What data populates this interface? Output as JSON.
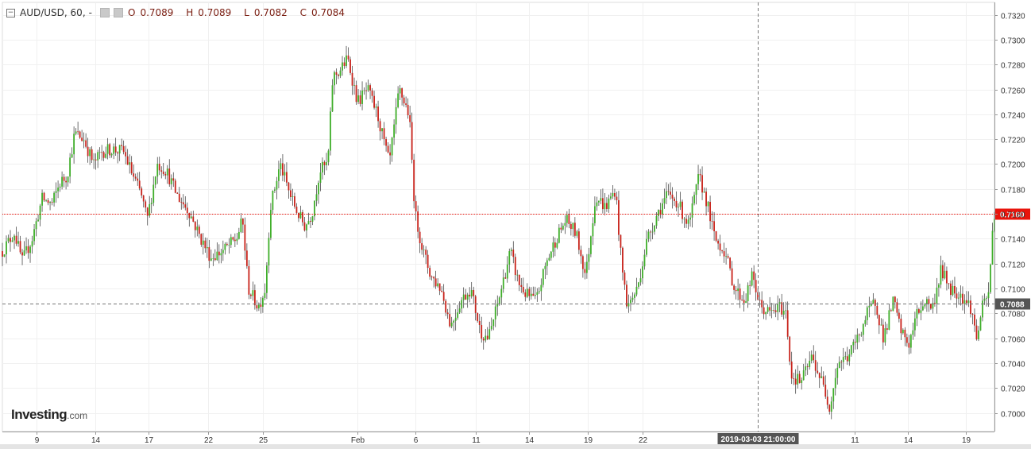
{
  "header": {
    "symbol": "AUD/USD, 60,",
    "dash": "-",
    "o_label": "O",
    "o": "0.7089",
    "h_label": "H",
    "h": "0.7089",
    "l_label": "L",
    "l": "0.7082",
    "c_label": "C",
    "c": "0.7084"
  },
  "logo": {
    "brand": "Investing",
    "suffix": ".com"
  },
  "crosshair_label": "2019-03-03 21:00:00",
  "colors": {
    "up": "#3fae2a",
    "down": "#c8231b",
    "wick": "#333333",
    "last_price": "#e8140c",
    "crosshair": "#777777",
    "grid": "#f0f0f0"
  },
  "chart_data": {
    "type": "candlestick",
    "ylim": [
      0.6985,
      0.733
    ],
    "ytick_values": [
      0.7,
      0.702,
      0.704,
      0.706,
      0.708,
      0.71,
      0.712,
      0.714,
      0.716,
      0.718,
      0.72,
      0.722,
      0.724,
      0.726,
      0.728,
      0.73,
      0.732
    ],
    "ytick_labels": [
      "0.7000",
      "0.7020",
      "0.7040",
      "0.7060",
      "0.7080",
      "0.7100",
      "0.7120",
      "0.7140",
      "0.7160",
      "0.7180",
      "0.7200",
      "0.7220",
      "0.7240",
      "0.7260",
      "0.7280",
      "0.7300",
      "0.7320"
    ],
    "x_ticks": [
      {
        "label": "9",
        "pos": 0.0342
      },
      {
        "label": "14",
        "pos": 0.0939
      },
      {
        "label": "17",
        "pos": 0.1475
      },
      {
        "label": "22",
        "pos": 0.2072
      },
      {
        "label": "25",
        "pos": 0.2629
      },
      {
        "label": "Feb",
        "pos": 0.3575
      },
      {
        "label": "6",
        "pos": 0.4164
      },
      {
        "label": "11",
        "pos": 0.4769
      },
      {
        "label": "14",
        "pos": 0.531
      },
      {
        "label": "19",
        "pos": 0.59
      },
      {
        "label": "22",
        "pos": 0.6457
      },
      {
        "label": "11",
        "pos": 0.8592
      },
      {
        "label": "14",
        "pos": 0.9125
      },
      {
        "label": "19",
        "pos": 0.9714
      }
    ],
    "crosshair_x_pos": 0.7613,
    "crosshair_price": 0.7088,
    "crosshair_price_label": "0.7088",
    "last_price": 0.716,
    "last_price_label": "0.7160",
    "path": [
      [
        0.0,
        0.713
      ],
      [
        0.012,
        0.7145
      ],
      [
        0.02,
        0.7122
      ],
      [
        0.03,
        0.714
      ],
      [
        0.04,
        0.7172
      ],
      [
        0.05,
        0.7168
      ],
      [
        0.058,
        0.7185
      ],
      [
        0.065,
        0.719
      ],
      [
        0.073,
        0.7225
      ],
      [
        0.082,
        0.722
      ],
      [
        0.092,
        0.72
      ],
      [
        0.1,
        0.721
      ],
      [
        0.11,
        0.7212
      ],
      [
        0.122,
        0.721
      ],
      [
        0.132,
        0.719
      ],
      [
        0.14,
        0.7175
      ],
      [
        0.146,
        0.7155
      ],
      [
        0.156,
        0.72
      ],
      [
        0.165,
        0.7195
      ],
      [
        0.176,
        0.7175
      ],
      [
        0.188,
        0.7162
      ],
      [
        0.2,
        0.714
      ],
      [
        0.21,
        0.7125
      ],
      [
        0.222,
        0.713
      ],
      [
        0.236,
        0.714
      ],
      [
        0.242,
        0.7155
      ],
      [
        0.248,
        0.71
      ],
      [
        0.258,
        0.7085
      ],
      [
        0.265,
        0.71
      ],
      [
        0.27,
        0.7165
      ],
      [
        0.28,
        0.72
      ],
      [
        0.29,
        0.7175
      ],
      [
        0.298,
        0.716
      ],
      [
        0.305,
        0.715
      ],
      [
        0.312,
        0.716
      ],
      [
        0.32,
        0.7195
      ],
      [
        0.328,
        0.72
      ],
      [
        0.333,
        0.727
      ],
      [
        0.34,
        0.7275
      ],
      [
        0.348,
        0.7285
      ],
      [
        0.358,
        0.725
      ],
      [
        0.368,
        0.726
      ],
      [
        0.378,
        0.724
      ],
      [
        0.39,
        0.72
      ],
      [
        0.4,
        0.726
      ],
      [
        0.41,
        0.724
      ],
      [
        0.416,
        0.716
      ],
      [
        0.424,
        0.713
      ],
      [
        0.432,
        0.711
      ],
      [
        0.442,
        0.71
      ],
      [
        0.452,
        0.707
      ],
      [
        0.462,
        0.709
      ],
      [
        0.472,
        0.71
      ],
      [
        0.482,
        0.7065
      ],
      [
        0.49,
        0.706
      ],
      [
        0.5,
        0.709
      ],
      [
        0.512,
        0.713
      ],
      [
        0.52,
        0.7105
      ],
      [
        0.528,
        0.7095
      ],
      [
        0.538,
        0.709
      ],
      [
        0.548,
        0.712
      ],
      [
        0.558,
        0.714
      ],
      [
        0.568,
        0.7155
      ],
      [
        0.578,
        0.7145
      ],
      [
        0.588,
        0.711
      ],
      [
        0.598,
        0.7175
      ],
      [
        0.608,
        0.7165
      ],
      [
        0.618,
        0.718
      ],
      [
        0.624,
        0.712
      ],
      [
        0.63,
        0.7085
      ],
      [
        0.64,
        0.71
      ],
      [
        0.65,
        0.714
      ],
      [
        0.66,
        0.716
      ],
      [
        0.67,
        0.7175
      ],
      [
        0.68,
        0.717
      ],
      [
        0.692,
        0.715
      ],
      [
        0.702,
        0.719
      ],
      [
        0.71,
        0.717
      ],
      [
        0.718,
        0.714
      ],
      [
        0.728,
        0.713
      ],
      [
        0.738,
        0.71
      ],
      [
        0.748,
        0.709
      ],
      [
        0.756,
        0.711
      ],
      [
        0.764,
        0.7085
      ],
      [
        0.774,
        0.708
      ],
      [
        0.784,
        0.7085
      ],
      [
        0.79,
        0.708
      ],
      [
        0.795,
        0.703
      ],
      [
        0.805,
        0.7025
      ],
      [
        0.816,
        0.7045
      ],
      [
        0.826,
        0.7025
      ],
      [
        0.834,
        0.7005
      ],
      [
        0.842,
        0.704
      ],
      [
        0.852,
        0.7045
      ],
      [
        0.862,
        0.706
      ],
      [
        0.872,
        0.708
      ],
      [
        0.88,
        0.709
      ],
      [
        0.888,
        0.706
      ],
      [
        0.898,
        0.709
      ],
      [
        0.906,
        0.7065
      ],
      [
        0.914,
        0.7055
      ],
      [
        0.922,
        0.708
      ],
      [
        0.93,
        0.709
      ],
      [
        0.938,
        0.7085
      ],
      [
        0.946,
        0.7115
      ],
      [
        0.956,
        0.71
      ],
      [
        0.966,
        0.7095
      ],
      [
        0.976,
        0.7085
      ],
      [
        0.982,
        0.706
      ],
      [
        0.988,
        0.7085
      ],
      [
        0.994,
        0.7095
      ],
      [
        0.998,
        0.7145
      ],
      [
        1.0,
        0.716
      ]
    ]
  }
}
